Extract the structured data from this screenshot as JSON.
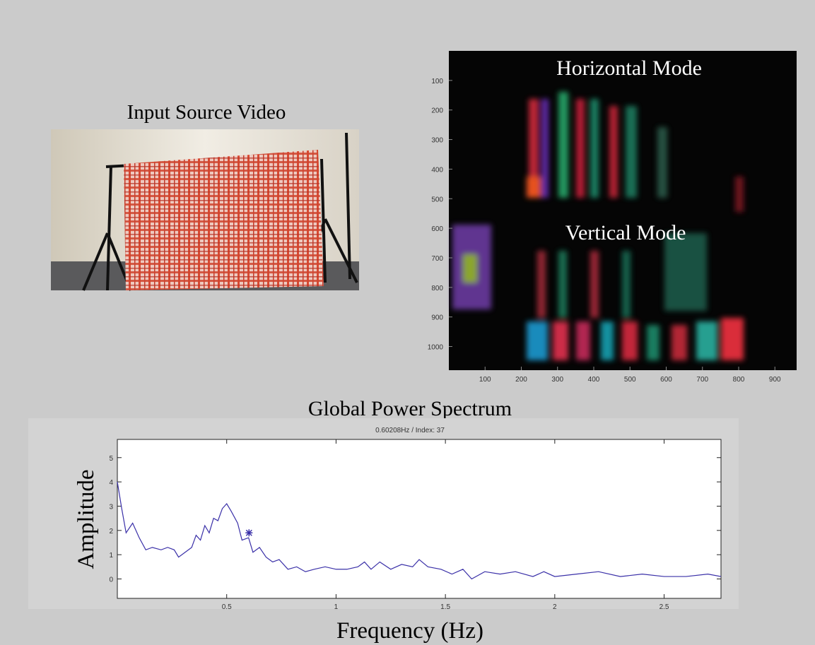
{
  "video": {
    "title": "Input Source Video"
  },
  "mode_panel": {
    "labels": [
      "Horizontal Mode",
      "Vertical Mode"
    ],
    "xlim": [
      0,
      960
    ],
    "ylim": [
      0,
      1080
    ],
    "xticks": [
      100,
      200,
      300,
      400,
      500,
      600,
      700,
      800,
      900
    ],
    "yticks": [
      100,
      200,
      300,
      400,
      500,
      600,
      700,
      800,
      900,
      1000
    ]
  },
  "spectrum_heading": "Global Power Spectrum",
  "chart_data": {
    "type": "line",
    "subtitle": "0.60208Hz / Index: 37",
    "x_label": "Frequency (Hz)",
    "y_label": "Amplitude",
    "color": "#3a30a8",
    "x": [
      0,
      0.02,
      0.04,
      0.07,
      0.1,
      0.13,
      0.16,
      0.2,
      0.23,
      0.26,
      0.28,
      0.31,
      0.34,
      0.36,
      0.38,
      0.4,
      0.42,
      0.44,
      0.46,
      0.48,
      0.5,
      0.52,
      0.55,
      0.57,
      0.6,
      0.62,
      0.65,
      0.68,
      0.71,
      0.74,
      0.78,
      0.82,
      0.86,
      0.9,
      0.95,
      1.0,
      1.05,
      1.1,
      1.13,
      1.16,
      1.2,
      1.25,
      1.3,
      1.35,
      1.38,
      1.42,
      1.48,
      1.53,
      1.58,
      1.62,
      1.68,
      1.75,
      1.82,
      1.9,
      1.95,
      2.0,
      2.1,
      2.2,
      2.3,
      2.4,
      2.5,
      2.6,
      2.7,
      2.76
    ],
    "values": [
      4.0,
      2.9,
      1.9,
      2.3,
      1.7,
      1.2,
      1.3,
      1.2,
      1.3,
      1.2,
      0.9,
      1.1,
      1.3,
      1.8,
      1.6,
      2.2,
      1.9,
      2.5,
      2.4,
      2.9,
      3.1,
      2.8,
      2.3,
      1.6,
      1.7,
      1.1,
      1.3,
      0.9,
      0.7,
      0.8,
      0.4,
      0.5,
      0.3,
      0.4,
      0.5,
      0.4,
      0.4,
      0.5,
      0.7,
      0.4,
      0.7,
      0.4,
      0.6,
      0.5,
      0.8,
      0.5,
      0.4,
      0.2,
      0.4,
      0.0,
      0.3,
      0.2,
      0.3,
      0.1,
      0.3,
      0.1,
      0.2,
      0.3,
      0.1,
      0.2,
      0.1,
      0.1,
      0.2,
      0.1
    ],
    "marker": {
      "x": 0.60208,
      "y": 1.9
    },
    "xlim": [
      0,
      2.76
    ],
    "ylim": [
      -0.8,
      5.75
    ],
    "xticks": [
      0.5,
      1,
      1.5,
      2,
      2.5
    ],
    "yticks": [
      0,
      1,
      2,
      3,
      4,
      5
    ]
  }
}
